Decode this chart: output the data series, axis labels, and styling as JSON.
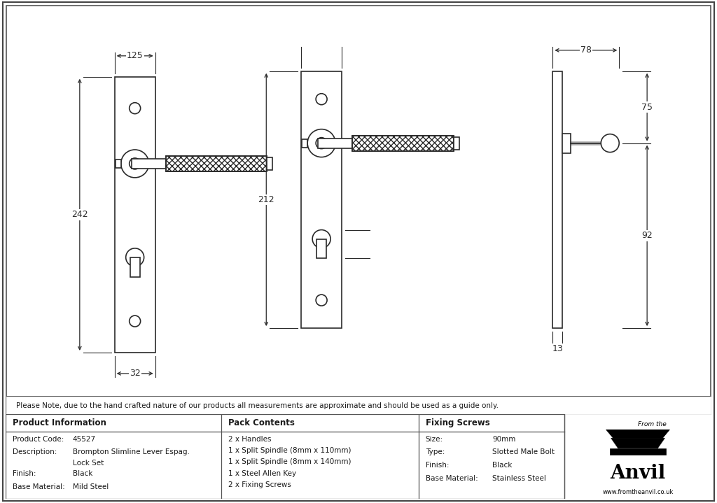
{
  "bg_color": "#ffffff",
  "line_color": "#2a2a2a",
  "dim_color": "#2a2a2a",
  "text_color": "#1a1a1a",
  "note_text": "Please Note, due to the hand crafted nature of our products all measurements are approximate and should be used as a guide only.",
  "product_info": {
    "header": "Product Information",
    "rows": [
      [
        "Product Code:",
        "45527"
      ],
      [
        "Description:",
        "Brompton Slimline Lever Espag.\nLock Set"
      ],
      [
        "Finish:",
        "Black"
      ],
      [
        "Base Material:",
        "Mild Steel"
      ]
    ]
  },
  "pack_contents": {
    "header": "Pack Contents",
    "rows": [
      "2 x Handles",
      "1 x Split Spindle (8mm x 110mm)",
      "1 x Split Spindle (8mm x 140mm)",
      "1 x Steel Allen Key",
      "2 x Fixing Screws"
    ]
  },
  "fixing_screws": {
    "header": "Fixing Screws",
    "rows": [
      [
        "Size:",
        "90mm"
      ],
      [
        "Type:",
        "Slotted Male Bolt"
      ],
      [
        "Finish:",
        "Black"
      ],
      [
        "Base Material:",
        "Stainless Steel"
      ]
    ]
  }
}
